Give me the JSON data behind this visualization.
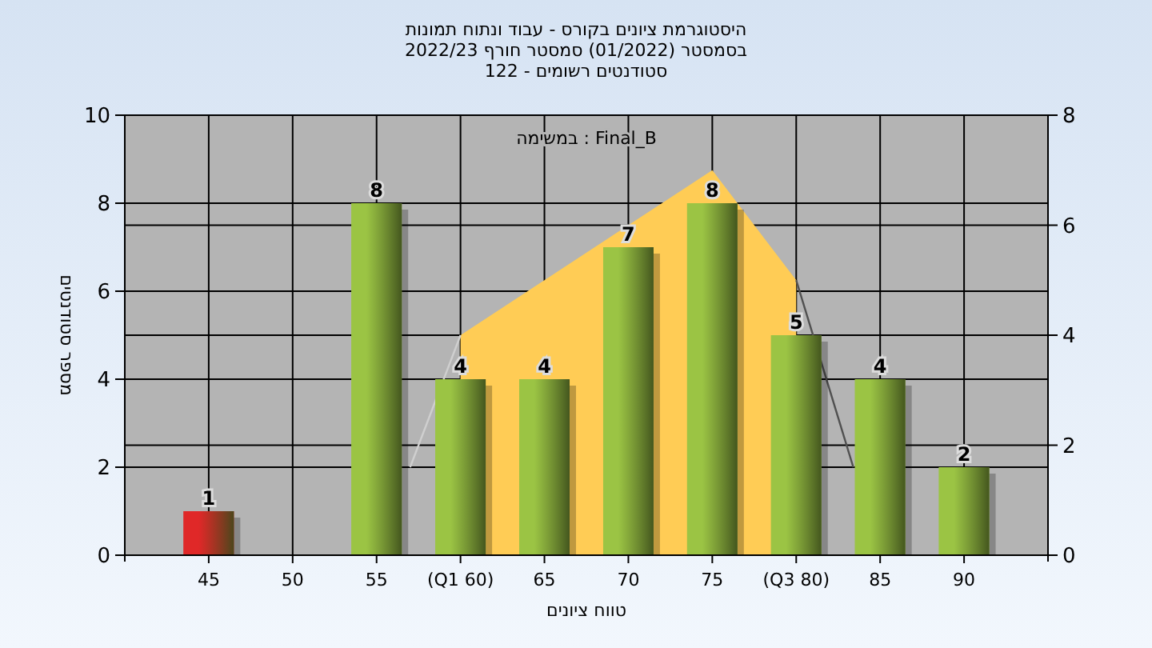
{
  "chart_data": {
    "type": "bar",
    "title": "היסטוגרמת ציונים בקורס - עבוד ונתוח תמונות",
    "subtitle": "בסמסטר  (01/2022)  סמסטר חורף 2022/23\nסטודנטים רשומים - 122",
    "xlabel": "טווח ציונים",
    "ylabel": "מספר סטודנטים",
    "annotations": [
      "במשימה : Final_B"
    ],
    "xlim": [
      40,
      95
    ],
    "xticks": [
      45,
      50,
      55,
      {
        "value": 60,
        "label": "(Q1 60)"
      },
      65,
      70,
      75,
      {
        "value": 80,
        "label": "(Q3 80)"
      },
      85,
      90
    ],
    "ylim": [
      0,
      10
    ],
    "yticks": [
      0,
      2,
      4,
      6,
      8,
      10
    ],
    "y2lim": [
      0,
      8
    ],
    "y2ticks": [
      0,
      2,
      4,
      6,
      8
    ],
    "grid": true,
    "series": [
      {
        "type": "area",
        "axis": "y2",
        "color": "#ffcc55",
        "x": [
          60,
          60,
          75,
          80,
          80
        ],
        "values": [
          0,
          4,
          7,
          5,
          0
        ]
      },
      {
        "type": "line",
        "axis": "y2",
        "color": "#cfcfcf",
        "x": [
          57,
          60
        ],
        "values": [
          1.6,
          4
        ]
      },
      {
        "type": "line",
        "axis": "y2",
        "color": "#505050",
        "x": [
          80,
          83.4
        ],
        "values": [
          5,
          1.6
        ]
      },
      {
        "x": [
          45,
          50,
          55,
          60,
          65,
          70,
          75,
          80,
          85,
          90
        ],
        "values": [
          1,
          null,
          8,
          4,
          4,
          7,
          8,
          5,
          4,
          2
        ],
        "value_labels": [
          "1",
          null,
          "8",
          "4",
          "4",
          "7",
          "8",
          "5",
          "4",
          "2"
        ],
        "colors": [
          "#e02828",
          "#9bc444",
          "#9bc444",
          "#9bc444",
          "#9bc444",
          "#9bc444",
          "#9bc444",
          "#9bc444",
          "#9bc444",
          "#9bc444"
        ]
      }
    ]
  }
}
